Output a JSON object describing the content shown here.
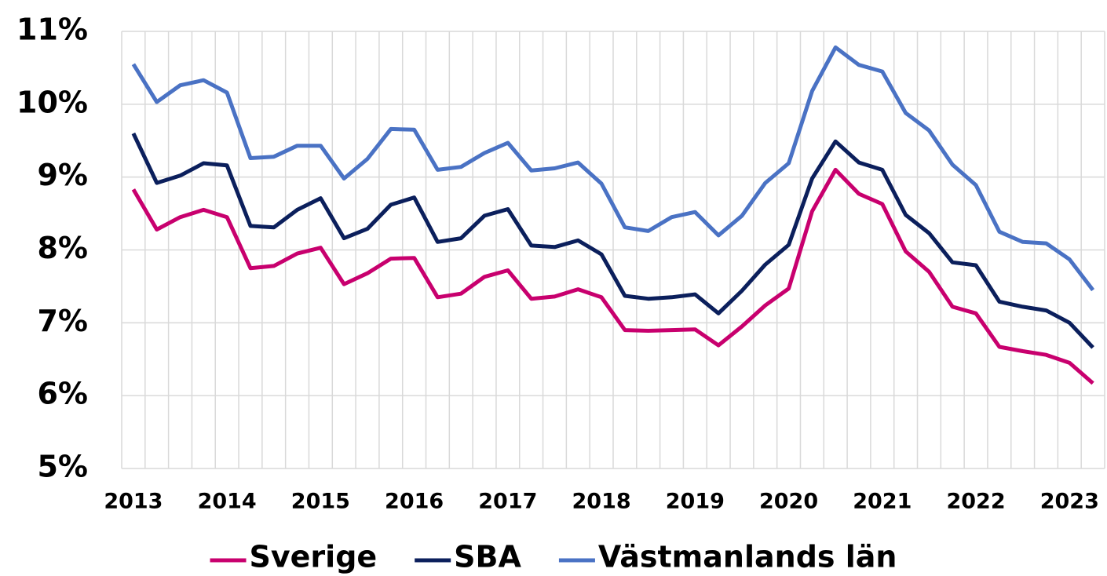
{
  "chart_data": {
    "type": "line",
    "categories": [
      "2013",
      null,
      null,
      null,
      "2014",
      null,
      null,
      null,
      "2015",
      null,
      null,
      null,
      "2016",
      null,
      null,
      null,
      "2017",
      null,
      null,
      null,
      "2018",
      null,
      null,
      null,
      "2019",
      null,
      null,
      null,
      "2020",
      null,
      null,
      null,
      "2021",
      null,
      null,
      null,
      "2022",
      null,
      null,
      null,
      "2023",
      null
    ],
    "series": [
      {
        "name": "Sverige",
        "color": "#c8006e",
        "values": [
          8.83,
          8.28,
          8.45,
          8.55,
          8.45,
          7.75,
          7.78,
          7.95,
          8.03,
          7.53,
          7.68,
          7.88,
          7.89,
          7.35,
          7.4,
          7.63,
          7.72,
          7.33,
          7.36,
          7.46,
          7.35,
          6.9,
          6.89,
          6.9,
          6.91,
          6.69,
          6.95,
          7.24,
          7.47,
          8.53,
          9.1,
          8.77,
          8.63,
          7.98,
          7.7,
          7.22,
          7.13,
          6.67,
          6.61,
          6.56,
          6.45,
          6.17
        ]
      },
      {
        "name": "SBA",
        "color": "#0b1f5c",
        "values": [
          9.6,
          8.92,
          9.02,
          9.19,
          9.16,
          8.33,
          8.31,
          8.55,
          8.71,
          8.16,
          8.29,
          8.62,
          8.72,
          8.11,
          8.16,
          8.47,
          8.56,
          8.06,
          8.04,
          8.13,
          7.94,
          7.37,
          7.33,
          7.35,
          7.39,
          7.13,
          7.44,
          7.8,
          8.07,
          8.98,
          9.49,
          9.2,
          9.1,
          8.48,
          8.23,
          7.83,
          7.79,
          7.29,
          7.22,
          7.17,
          7.0,
          6.66
        ]
      },
      {
        "name": "Västmanlands län",
        "color": "#4a72c4",
        "values": [
          10.55,
          10.03,
          10.26,
          10.33,
          10.16,
          9.26,
          9.28,
          9.43,
          9.43,
          8.98,
          9.25,
          9.66,
          9.65,
          9.1,
          9.14,
          9.33,
          9.47,
          9.09,
          9.12,
          9.2,
          8.91,
          8.31,
          8.26,
          8.45,
          8.52,
          8.2,
          8.47,
          8.92,
          9.19,
          10.18,
          10.78,
          10.54,
          10.45,
          9.88,
          9.64,
          9.17,
          8.89,
          8.25,
          8.11,
          8.09,
          7.87,
          7.45
        ]
      }
    ],
    "ylim": [
      5,
      11
    ],
    "yticks": [
      {
        "value": 5,
        "label": "5%"
      },
      {
        "value": 6,
        "label": "6%"
      },
      {
        "value": 7,
        "label": "7%"
      },
      {
        "value": 8,
        "label": "8%"
      },
      {
        "value": 9,
        "label": "9%"
      },
      {
        "value": 10,
        "label": "10%"
      },
      {
        "value": 11,
        "label": "11%"
      }
    ],
    "grid": true,
    "legend": "bottom"
  }
}
